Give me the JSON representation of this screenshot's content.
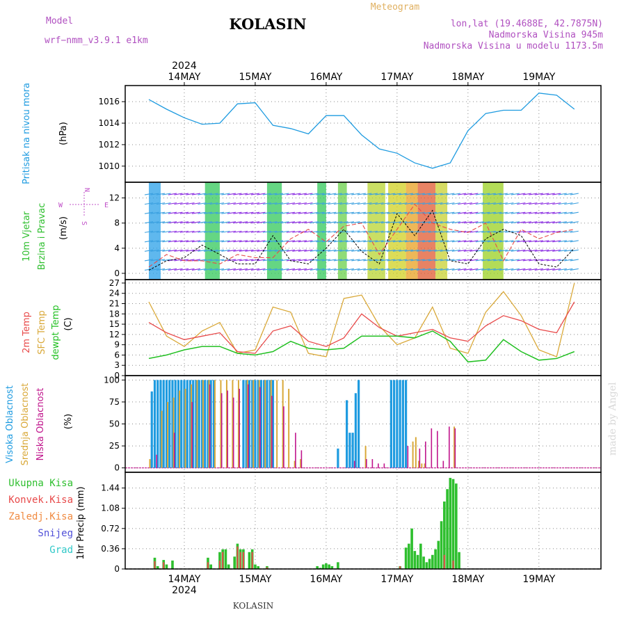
{
  "header": {
    "model_label": "Model",
    "model_name": "wrf−nmm_v3.9.1  e1km",
    "station": "KOLASIN",
    "meteogram_label": "Meteogram",
    "location": "lon,lat (19.4688E, 42.7875N)",
    "elevation": "Nadmorska Visina 945m",
    "model_elevation": "Nadmorska Visina u modelu 1173.5m"
  },
  "footer": {
    "station": "KOLASIN",
    "credit": "made by Angel"
  },
  "colors": {
    "pressure": "#1e9be0",
    "t2m": "#e84a4a",
    "sfc": "#d9a838",
    "dew": "#22c022",
    "high_cloud": "#1e9be0",
    "mid_cloud": "#d9a838",
    "low_cloud": "#c0148c",
    "precip_total": "#2ebf2e",
    "precip_conv": "#e84a4a",
    "wind_legend": "#c050c8"
  },
  "chart_data": [
    {
      "type": "line",
      "title": "",
      "ylabel_lines": [
        "Pritisak na nivou mora",
        "(hPa)"
      ],
      "ylim": [
        1008.5,
        1017.5
      ],
      "yticks": [
        1010,
        1012,
        1014,
        1016
      ],
      "x_day_labels": [
        "14MAY",
        "15MAY",
        "16MAY",
        "17MAY",
        "18MAY",
        "19MAY"
      ],
      "x_year_label": "2024",
      "hours": [
        0,
        6,
        12,
        18,
        24,
        30,
        36,
        42,
        48,
        54,
        60,
        66,
        72,
        78,
        84,
        90,
        96,
        102,
        108,
        114,
        120,
        126,
        132,
        138,
        144
      ],
      "series": [
        {
          "values": [
            1016.2,
            1015.3,
            1014.5,
            1013.9,
            1014.0,
            1015.8,
            1015.9,
            1013.8,
            1013.5,
            1013.0,
            1014.7,
            1014.7,
            1012.9,
            1011.6,
            1011.2,
            1010.3,
            1009.8,
            1010.3,
            1013.3,
            1014.9,
            1015.2,
            1015.2,
            1016.8,
            1016.6,
            1015.3
          ]
        }
      ]
    },
    {
      "type": "line",
      "title": "",
      "ylabel_lines": [
        "10m Vjetar",
        "Brzina i Pravac",
        "(m/s)"
      ],
      "ylim": [
        -1,
        14.5
      ],
      "yticks": [
        0,
        4,
        8,
        12
      ],
      "compass_labels": {
        "n": "N",
        "s": "S",
        "w": "W",
        "e": "E"
      },
      "hours": [
        0,
        6,
        12,
        18,
        24,
        30,
        36,
        42,
        48,
        54,
        60,
        66,
        72,
        78,
        84,
        90,
        96,
        102,
        108,
        114,
        120,
        126,
        132,
        138,
        144
      ],
      "series": [
        {
          "name": "wind_speed",
          "values": [
            0.5,
            2.0,
            2.5,
            4.5,
            3.0,
            1.5,
            1.5,
            6.0,
            2.0,
            1.5,
            4.0,
            7.0,
            3.5,
            1.5,
            9.5,
            6.0,
            10.0,
            2.0,
            1.5,
            5.5,
            7.0,
            6.0,
            1.5,
            1.0,
            4.0
          ]
        },
        {
          "name": "wind_gust",
          "values": [
            1.0,
            3.0,
            2.0,
            2.0,
            1.5,
            3.0,
            2.5,
            2.5,
            5.5,
            7.0,
            5.0,
            7.5,
            8.0,
            3.0,
            7.0,
            11.0,
            8.0,
            7.0,
            6.5,
            8.0,
            2.0,
            7.0,
            5.5,
            6.5,
            7.0
          ]
        }
      ]
    },
    {
      "type": "line",
      "title": "",
      "ylabel_lines": [
        "2m Temp",
        "SFC Temp",
        "dewpt Temp",
        "(C)"
      ],
      "ylim": [
        0,
        28
      ],
      "yticks": [
        0,
        3,
        6,
        9,
        12,
        15,
        18,
        21,
        24,
        27
      ],
      "hours": [
        0,
        6,
        12,
        18,
        24,
        30,
        36,
        42,
        48,
        54,
        60,
        66,
        72,
        78,
        84,
        90,
        96,
        102,
        108,
        114,
        120,
        126,
        132,
        138,
        144
      ],
      "series": [
        {
          "name": "2m Temp",
          "values": [
            15.5,
            12.5,
            10.5,
            11.5,
            12.5,
            7.0,
            6.5,
            13.0,
            14.5,
            10.0,
            8.5,
            11.0,
            18.0,
            14.0,
            11.5,
            12.5,
            13.5,
            11.0,
            10.0,
            14.5,
            17.5,
            16.0,
            13.5,
            12.5,
            21.5
          ]
        },
        {
          "name": "SFC Temp",
          "values": [
            21.5,
            11.5,
            8.5,
            13.0,
            15.5,
            6.5,
            7.5,
            20.0,
            18.5,
            6.5,
            5.5,
            22.5,
            23.5,
            14.5,
            9.0,
            11.0,
            20.0,
            8.0,
            6.5,
            18.5,
            24.5,
            17.5,
            7.5,
            5.5,
            27.0
          ]
        },
        {
          "name": "dewpt Temp",
          "values": [
            5.0,
            6.0,
            7.5,
            8.5,
            8.5,
            6.5,
            6.0,
            7.0,
            10.0,
            8.0,
            7.5,
            8.0,
            11.5,
            11.5,
            11.5,
            11.0,
            13.0,
            10.0,
            4.0,
            4.5,
            10.5,
            7.0,
            4.5,
            5.0,
            7.0
          ]
        }
      ]
    },
    {
      "type": "bar",
      "title": "",
      "ylabel_lines": [
        "Visoka Oblacnost",
        "Srednja Oblacnost",
        "Niska Oblacnost",
        "(%)"
      ],
      "ylim": [
        -5,
        105
      ],
      "yticks": [
        0,
        25,
        50,
        75,
        100
      ],
      "series": [
        {
          "name": "Visoka Oblacnost",
          "hours": [
            1,
            2,
            3,
            4,
            5,
            6,
            7,
            8,
            9,
            10,
            11,
            12,
            13,
            14,
            15,
            16,
            17,
            18,
            19,
            20,
            21,
            22,
            32,
            33,
            34,
            35,
            36,
            37,
            38,
            39,
            40,
            41,
            42,
            64,
            67,
            68,
            69,
            70,
            71,
            82,
            83,
            84,
            85,
            86,
            87
          ],
          "values": [
            87,
            100,
            100,
            100,
            100,
            100,
            100,
            100,
            100,
            100,
            100,
            100,
            100,
            100,
            100,
            100,
            100,
            100,
            100,
            100,
            100,
            100,
            100,
            100,
            100,
            100,
            100,
            100,
            100,
            100,
            100,
            100,
            100,
            22,
            77,
            40,
            40,
            85,
            100,
            100,
            100,
            100,
            100,
            100,
            100
          ]
        },
        {
          "name": "Srednja Oblacnost",
          "hours": [
            0,
            4,
            6,
            8,
            10,
            12,
            14,
            16,
            18,
            20,
            22,
            24,
            26,
            28,
            30,
            33,
            35,
            37,
            39,
            41,
            43,
            45,
            47,
            49,
            51,
            73,
            89,
            90,
            91,
            92,
            93,
            103
          ],
          "values": [
            10,
            65,
            75,
            80,
            88,
            90,
            95,
            100,
            100,
            100,
            100,
            100,
            100,
            100,
            100,
            100,
            100,
            100,
            100,
            100,
            100,
            100,
            90,
            8,
            10,
            25,
            30,
            35,
            8,
            5,
            5,
            47
          ]
        },
        {
          "name": "Niska Oblacnost",
          "hours": [
            3,
            9,
            15,
            21,
            25,
            27,
            29,
            31,
            34,
            38,
            42,
            46,
            50,
            52,
            70,
            74,
            76,
            78,
            80,
            88,
            92,
            94,
            96,
            98,
            100,
            102,
            104
          ],
          "values": [
            15,
            40,
            75,
            95,
            85,
            88,
            80,
            90,
            95,
            92,
            82,
            70,
            40,
            20,
            8,
            10,
            10,
            5,
            5,
            25,
            22,
            30,
            45,
            42,
            8,
            47,
            45
          ]
        }
      ]
    },
    {
      "type": "bar",
      "title": "",
      "ylabel_lines": [
        "1hr Precip (mm)"
      ],
      "legend": [
        "Ukupna Kisa",
        "Konvek.Kisa",
        "Zaledj.Kisa",
        "Snijeg",
        "Grad"
      ],
      "ylim": [
        0,
        1.72
      ],
      "yticks": [
        0,
        0.36,
        0.72,
        1.08,
        1.44
      ],
      "ytick_labels": [
        "0",
        "0.36",
        "0.72",
        "1.08",
        "1.44"
      ],
      "x_day_labels": [
        "14MAY",
        "15MAY",
        "16MAY",
        "17MAY",
        "18MAY",
        "19MAY"
      ],
      "x_year_label": "2024",
      "series": [
        {
          "name": "Ukupna Kisa",
          "hours": [
            2,
            3,
            5,
            6,
            8,
            20,
            21,
            24,
            25,
            26,
            27,
            29,
            30,
            31,
            32,
            34,
            35,
            36,
            37,
            40,
            57,
            58,
            59,
            60,
            61,
            62,
            64,
            85,
            87,
            88,
            89,
            90,
            91,
            92,
            93,
            94,
            95,
            96,
            97,
            98,
            99,
            100,
            101,
            102,
            103,
            104,
            105
          ],
          "values": [
            0.2,
            0.05,
            0.16,
            0.08,
            0.15,
            0.2,
            0.08,
            0.3,
            0.35,
            0.35,
            0.08,
            0.22,
            0.45,
            0.35,
            0.35,
            0.3,
            0.35,
            0.08,
            0.05,
            0.05,
            0.05,
            0.02,
            0.08,
            0.1,
            0.08,
            0.05,
            0.12,
            0.05,
            0.38,
            0.45,
            0.72,
            0.32,
            0.25,
            0.45,
            0.22,
            0.12,
            0.18,
            0.25,
            0.35,
            0.5,
            0.85,
            1.2,
            1.42,
            1.62,
            1.6,
            1.52,
            0.3
          ]
        },
        {
          "name": "Konvek.Kisa",
          "hours": [
            2,
            5,
            20,
            24,
            25,
            30,
            31,
            32,
            35,
            40,
            85,
            100,
            103
          ],
          "values": [
            0.14,
            0.12,
            0.12,
            0.15,
            0.3,
            0.4,
            0.3,
            0.3,
            0.3,
            0.03,
            0.05,
            0.25,
            0.15
          ]
        }
      ]
    }
  ]
}
